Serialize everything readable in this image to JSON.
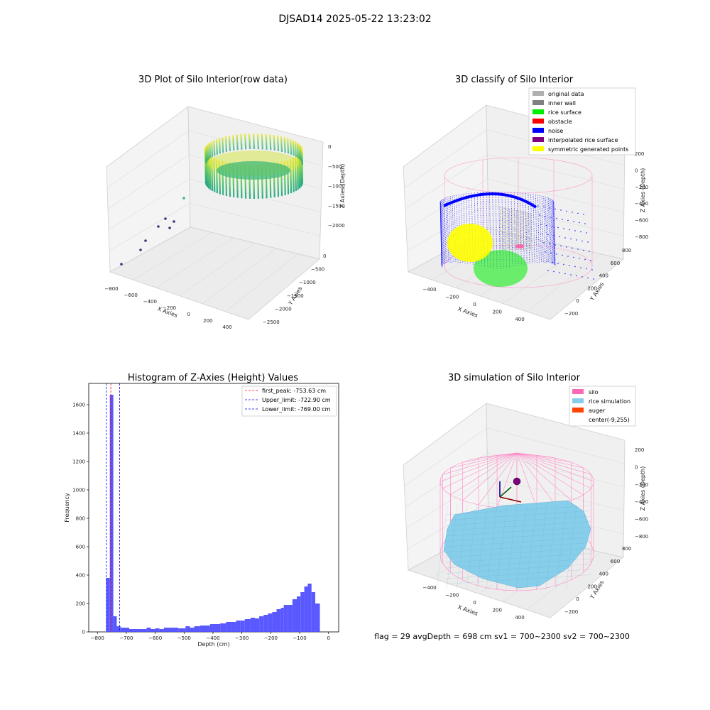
{
  "suptitle": "DJSAD14 2025-05-22 13:23:02",
  "chart_data": [
    {
      "type": "scatter",
      "title": "3D Plot of Silo Interior(row data)",
      "xlabel": "X Axies",
      "ylabel": "Y Axies",
      "zlabel": "Z Axies (Depth)",
      "x_ticks": [
        "−800",
        "−600",
        "−400",
        "−200",
        "0",
        "200",
        "400"
      ],
      "y_ticks": [
        "0",
        "−500",
        "−1000",
        "−1500",
        "−2000",
        "−2500"
      ],
      "z_ticks": [
        "0",
        "−500",
        "−1000",
        "−1500",
        "−2000"
      ],
      "colormap": "viridis"
    },
    {
      "type": "scatter",
      "title": "3D classify of Silo Interior",
      "xlabel": "X Axies",
      "ylabel": "Y Axies",
      "zlabel": "Z Axies (Depth)",
      "x_ticks": [
        "−400",
        "−200",
        "0",
        "200",
        "400"
      ],
      "y_ticks": [
        "800",
        "600",
        "400",
        "200",
        "0",
        "−200"
      ],
      "z_ticks": [
        "200",
        "0",
        "−200",
        "−400",
        "−600",
        "−800"
      ],
      "legend": [
        {
          "label": "original data",
          "color": "#b0b0b0"
        },
        {
          "label": "inner wall",
          "color": "#808080"
        },
        {
          "label": "rice surface",
          "color": "#00ee00"
        },
        {
          "label": "obstacle",
          "color": "#ff0000"
        },
        {
          "label": "noise",
          "color": "#0000ff"
        },
        {
          "label": "interpolated rice surface",
          "color": "#800080"
        },
        {
          "label": "symmetric generated points",
          "color": "#ffff00"
        }
      ],
      "legend_position": "top-right"
    },
    {
      "type": "bar",
      "title": "Histogram of Z-Axies (Height) Values",
      "xlabel": "Depth (cm)",
      "ylabel": "Frequency",
      "xlim": [
        -800,
        0
      ],
      "ylim": [
        0,
        1750
      ],
      "x_ticks": [
        -800,
        -700,
        -600,
        -500,
        -400,
        -300,
        -200,
        -100,
        0
      ],
      "y_ticks": [
        0,
        200,
        400,
        600,
        800,
        1000,
        1200,
        1400,
        1600
      ],
      "bins": [
        {
          "x0": -770,
          "x1": -757,
          "count": 380
        },
        {
          "x0": -757,
          "x1": -745,
          "count": 1670
        },
        {
          "x0": -745,
          "x1": -733,
          "count": 110
        },
        {
          "x0": -733,
          "x1": -720,
          "count": 40
        },
        {
          "x0": -720,
          "x1": -690,
          "count": 30
        },
        {
          "x0": -690,
          "x1": -660,
          "count": 20
        },
        {
          "x0": -660,
          "x1": -630,
          "count": 20
        },
        {
          "x0": -630,
          "x1": -615,
          "count": 30
        },
        {
          "x0": -615,
          "x1": -600,
          "count": 20
        },
        {
          "x0": -600,
          "x1": -585,
          "count": 25
        },
        {
          "x0": -585,
          "x1": -570,
          "count": 20
        },
        {
          "x0": -570,
          "x1": -545,
          "count": 30
        },
        {
          "x0": -545,
          "x1": -520,
          "count": 30
        },
        {
          "x0": -520,
          "x1": -495,
          "count": 25
        },
        {
          "x0": -495,
          "x1": -480,
          "count": 40
        },
        {
          "x0": -480,
          "x1": -465,
          "count": 30
        },
        {
          "x0": -465,
          "x1": -445,
          "count": 40
        },
        {
          "x0": -445,
          "x1": -410,
          "count": 45
        },
        {
          "x0": -410,
          "x1": -375,
          "count": 55
        },
        {
          "x0": -375,
          "x1": -355,
          "count": 60
        },
        {
          "x0": -355,
          "x1": -335,
          "count": 70
        },
        {
          "x0": -335,
          "x1": -320,
          "count": 70
        },
        {
          "x0": -320,
          "x1": -305,
          "count": 80
        },
        {
          "x0": -305,
          "x1": -290,
          "count": 80
        },
        {
          "x0": -290,
          "x1": -270,
          "count": 90
        },
        {
          "x0": -270,
          "x1": -255,
          "count": 100
        },
        {
          "x0": -255,
          "x1": -240,
          "count": 95
        },
        {
          "x0": -240,
          "x1": -225,
          "count": 110
        },
        {
          "x0": -225,
          "x1": -210,
          "count": 120
        },
        {
          "x0": -210,
          "x1": -195,
          "count": 130
        },
        {
          "x0": -195,
          "x1": -180,
          "count": 140
        },
        {
          "x0": -180,
          "x1": -165,
          "count": 160
        },
        {
          "x0": -165,
          "x1": -155,
          "count": 170
        },
        {
          "x0": -155,
          "x1": -140,
          "count": 190
        },
        {
          "x0": -140,
          "x1": -125,
          "count": 190
        },
        {
          "x0": -125,
          "x1": -110,
          "count": 230
        },
        {
          "x0": -110,
          "x1": -97,
          "count": 250
        },
        {
          "x0": -97,
          "x1": -84,
          "count": 280
        },
        {
          "x0": -84,
          "x1": -72,
          "count": 320
        },
        {
          "x0": -72,
          "x1": -59,
          "count": 340
        },
        {
          "x0": -59,
          "x1": -46,
          "count": 280
        },
        {
          "x0": -46,
          "x1": -30,
          "count": 200
        }
      ],
      "vlines": [
        {
          "label": "first_peak: -753.63 cm",
          "x": -753.63,
          "color": "#ff0000"
        },
        {
          "label": "Upper_limit: -722.90 cm",
          "x": -722.9,
          "color": "#0000ff"
        },
        {
          "label": "Lower_limit: -769.00 cm",
          "x": -769.0,
          "color": "#0000ff"
        }
      ],
      "bar_color": "#5050ff",
      "legend_position": "top-right"
    },
    {
      "type": "scatter",
      "title": "3D simulation of Silo Interior",
      "xlabel": "X Axies",
      "ylabel": "Y Axies",
      "zlabel": "Z Axies (Depth)",
      "x_ticks": [
        "−400",
        "−200",
        "0",
        "200",
        "400"
      ],
      "y_ticks": [
        "800",
        "600",
        "400",
        "200",
        "0",
        "−200"
      ],
      "z_ticks": [
        "200",
        "0",
        "−200",
        "−400",
        "−600",
        "−800"
      ],
      "legend": [
        {
          "label": "silo",
          "color": "#ff69b4"
        },
        {
          "label": "rice simulation",
          "color": "#87ceeb"
        },
        {
          "label": "auger",
          "color": "#ff4500"
        },
        {
          "label": "center(-9,255)",
          "color": "#ffffff"
        }
      ],
      "legend_position": "top-right"
    }
  ],
  "footer": "flag = 29  avgDepth = 698 cm  sv1 = 700~2300  sv2 = 700~2300"
}
